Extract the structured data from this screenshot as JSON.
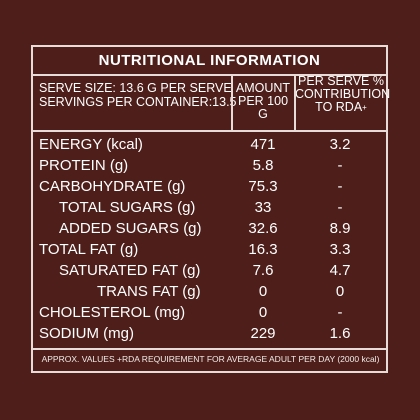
{
  "panel_title": "NUTRITIONAL INFORMATION",
  "header": {
    "serve_size": "SERVE SIZE: 13.6 g PER SERVE",
    "servings": "SERVINGS PER CONTAINER:13.5",
    "amount_line1": "AMOUNT",
    "amount_line2": "PER 100 g",
    "rda_line1": "PER SERVE %",
    "rda_line2": "CONTRIBUTION",
    "rda_line3": "TO RDA",
    "rda_mark": "+"
  },
  "rows": [
    {
      "name": "ENERGY (kcal)",
      "amount": "471",
      "rda": "3.2"
    },
    {
      "name": "PROTEIN (g)",
      "amount": "5.8",
      "rda": "-"
    },
    {
      "name": "CARBOHYDRATE (g)",
      "amount": "75.3",
      "rda": "-"
    },
    {
      "name": "TOTAL SUGARS (g)",
      "amount": "33",
      "rda": "-"
    },
    {
      "name": "ADDED SUGARS (g)",
      "amount": "32.6",
      "rda": "8.9"
    },
    {
      "name": "TOTAL FAT (g)",
      "amount": "16.3",
      "rda": "3.3"
    },
    {
      "name": "SATURATED FAT (g)",
      "amount": "7.6",
      "rda": "4.7"
    },
    {
      "name": "TRANS FAT (g)",
      "amount": "0",
      "rda": "0"
    },
    {
      "name": "CHOLESTEROL (mg)",
      "amount": "0",
      "rda": "-"
    },
    {
      "name": "SODIUM (mg)",
      "amount": "229",
      "rda": "1.6"
    }
  ],
  "footer": "APPROX. VALUES +RDA REQUIREMENT FOR AVERAGE ADULT PER DAY (2000 kcal)",
  "colors": {
    "background": "#4e1f1a",
    "text": "#ffffff",
    "rules": "#e8dcd8"
  }
}
